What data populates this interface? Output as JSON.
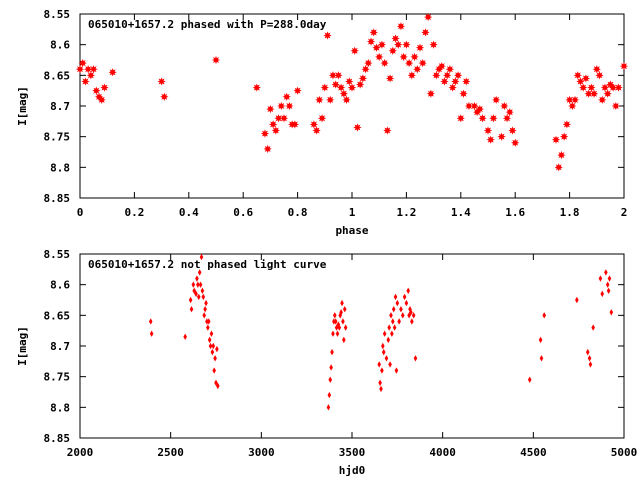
{
  "chart_data": [
    {
      "type": "scatter",
      "title": "065010+1657.2 phased with P=288.0day",
      "xlabel": "phase",
      "ylabel": "I[mag]",
      "xlim": [
        0,
        2
      ],
      "ylim": [
        8.55,
        8.85
      ],
      "y_inverted": true,
      "xticks": [
        "0",
        "0.2",
        "0.4",
        "0.6",
        "0.8",
        "1",
        "1.2",
        "1.4",
        "1.6",
        "1.8",
        "2"
      ],
      "yticks": [
        "8.55",
        "8.6",
        "8.65",
        "8.7",
        "8.75",
        "8.8",
        "8.85"
      ],
      "marker": "star",
      "color": "#ff0000",
      "points": [
        [
          0.0,
          8.64
        ],
        [
          0.01,
          8.63
        ],
        [
          0.02,
          8.66
        ],
        [
          0.03,
          8.64
        ],
        [
          0.04,
          8.65
        ],
        [
          0.05,
          8.64
        ],
        [
          0.06,
          8.675
        ],
        [
          0.07,
          8.685
        ],
        [
          0.08,
          8.69
        ],
        [
          0.09,
          8.67
        ],
        [
          0.12,
          8.645
        ],
        [
          0.3,
          8.66
        ],
        [
          0.31,
          8.685
        ],
        [
          0.5,
          8.625
        ],
        [
          0.65,
          8.67
        ],
        [
          0.68,
          8.745
        ],
        [
          0.69,
          8.77
        ],
        [
          0.7,
          8.705
        ],
        [
          0.71,
          8.73
        ],
        [
          0.72,
          8.74
        ],
        [
          0.73,
          8.72
        ],
        [
          0.74,
          8.7
        ],
        [
          0.75,
          8.72
        ],
        [
          0.76,
          8.685
        ],
        [
          0.77,
          8.7
        ],
        [
          0.78,
          8.73
        ],
        [
          0.79,
          8.73
        ],
        [
          0.8,
          8.675
        ],
        [
          0.86,
          8.73
        ],
        [
          0.87,
          8.74
        ],
        [
          0.88,
          8.69
        ],
        [
          0.89,
          8.72
        ],
        [
          0.9,
          8.67
        ],
        [
          0.91,
          8.585
        ],
        [
          0.92,
          8.69
        ],
        [
          0.93,
          8.65
        ],
        [
          0.94,
          8.665
        ],
        [
          0.95,
          8.65
        ],
        [
          0.96,
          8.67
        ],
        [
          0.97,
          8.68
        ],
        [
          0.98,
          8.69
        ],
        [
          0.99,
          8.66
        ],
        [
          1.0,
          8.67
        ],
        [
          1.01,
          8.61
        ],
        [
          1.02,
          8.735
        ],
        [
          1.03,
          8.665
        ],
        [
          1.04,
          8.655
        ],
        [
          1.05,
          8.64
        ],
        [
          1.06,
          8.63
        ],
        [
          1.07,
          8.595
        ],
        [
          1.08,
          8.58
        ],
        [
          1.09,
          8.605
        ],
        [
          1.1,
          8.62
        ],
        [
          1.11,
          8.6
        ],
        [
          1.12,
          8.63
        ],
        [
          1.13,
          8.74
        ],
        [
          1.14,
          8.655
        ],
        [
          1.15,
          8.61
        ],
        [
          1.16,
          8.59
        ],
        [
          1.17,
          8.6
        ],
        [
          1.18,
          8.57
        ],
        [
          1.19,
          8.62
        ],
        [
          1.2,
          8.6
        ],
        [
          1.21,
          8.63
        ],
        [
          1.22,
          8.65
        ],
        [
          1.23,
          8.62
        ],
        [
          1.24,
          8.64
        ],
        [
          1.25,
          8.605
        ],
        [
          1.26,
          8.63
        ],
        [
          1.27,
          8.58
        ],
        [
          1.28,
          8.555
        ],
        [
          1.29,
          8.68
        ],
        [
          1.3,
          8.6
        ],
        [
          1.31,
          8.65
        ],
        [
          1.32,
          8.64
        ],
        [
          1.33,
          8.635
        ],
        [
          1.34,
          8.66
        ],
        [
          1.35,
          8.65
        ],
        [
          1.36,
          8.64
        ],
        [
          1.37,
          8.67
        ],
        [
          1.38,
          8.66
        ],
        [
          1.39,
          8.65
        ],
        [
          1.4,
          8.72
        ],
        [
          1.41,
          8.68
        ],
        [
          1.42,
          8.66
        ],
        [
          1.43,
          8.7
        ],
        [
          1.45,
          8.7
        ],
        [
          1.46,
          8.71
        ],
        [
          1.47,
          8.705
        ],
        [
          1.48,
          8.72
        ],
        [
          1.5,
          8.74
        ],
        [
          1.51,
          8.755
        ],
        [
          1.52,
          8.72
        ],
        [
          1.53,
          8.69
        ],
        [
          1.55,
          8.75
        ],
        [
          1.56,
          8.7
        ],
        [
          1.57,
          8.72
        ],
        [
          1.58,
          8.71
        ],
        [
          1.59,
          8.74
        ],
        [
          1.6,
          8.76
        ],
        [
          1.75,
          8.755
        ],
        [
          1.76,
          8.8
        ],
        [
          1.77,
          8.78
        ],
        [
          1.78,
          8.75
        ],
        [
          1.79,
          8.73
        ],
        [
          1.8,
          8.69
        ],
        [
          1.81,
          8.7
        ],
        [
          1.82,
          8.69
        ],
        [
          1.83,
          8.65
        ],
        [
          1.84,
          8.66
        ],
        [
          1.85,
          8.67
        ],
        [
          1.86,
          8.655
        ],
        [
          1.87,
          8.68
        ],
        [
          1.88,
          8.67
        ],
        [
          1.89,
          8.68
        ],
        [
          1.9,
          8.64
        ],
        [
          1.91,
          8.65
        ],
        [
          1.92,
          8.69
        ],
        [
          1.93,
          8.67
        ],
        [
          1.94,
          8.68
        ],
        [
          1.95,
          8.665
        ],
        [
          1.96,
          8.67
        ],
        [
          1.97,
          8.7
        ],
        [
          1.98,
          8.67
        ],
        [
          2.0,
          8.635
        ]
      ]
    },
    {
      "type": "scatter",
      "title": "065010+1657.2 not phased light curve",
      "xlabel": "hjd0",
      "ylabel": "I[mag]",
      "xlim": [
        2000,
        5000
      ],
      "ylim": [
        8.55,
        8.85
      ],
      "y_inverted": true,
      "xticks": [
        "2000",
        "2500",
        "3000",
        "3500",
        "4000",
        "4500",
        "5000"
      ],
      "yticks": [
        "8.55",
        "8.6",
        "8.65",
        "8.7",
        "8.75",
        "8.8",
        "8.85"
      ],
      "marker": "diamond",
      "color": "#ff0000",
      "points": [
        [
          2390,
          8.66
        ],
        [
          2395,
          8.68
        ],
        [
          2580,
          8.685
        ],
        [
          2610,
          8.625
        ],
        [
          2615,
          8.64
        ],
        [
          2625,
          8.6
        ],
        [
          2630,
          8.61
        ],
        [
          2640,
          8.615
        ],
        [
          2645,
          8.59
        ],
        [
          2650,
          8.6
        ],
        [
          2655,
          8.62
        ],
        [
          2660,
          8.58
        ],
        [
          2665,
          8.6
        ],
        [
          2670,
          8.555
        ],
        [
          2675,
          8.61
        ],
        [
          2680,
          8.62
        ],
        [
          2685,
          8.65
        ],
        [
          2690,
          8.64
        ],
        [
          2695,
          8.63
        ],
        [
          2700,
          8.66
        ],
        [
          2705,
          8.67
        ],
        [
          2710,
          8.66
        ],
        [
          2715,
          8.69
        ],
        [
          2720,
          8.7
        ],
        [
          2725,
          8.68
        ],
        [
          2730,
          8.71
        ],
        [
          2735,
          8.7
        ],
        [
          2740,
          8.74
        ],
        [
          2745,
          8.72
        ],
        [
          2750,
          8.76
        ],
        [
          2755,
          8.705
        ],
        [
          2760,
          8.765
        ],
        [
          3370,
          8.8
        ],
        [
          3375,
          8.78
        ],
        [
          3380,
          8.755
        ],
        [
          3385,
          8.735
        ],
        [
          3390,
          8.71
        ],
        [
          3395,
          8.68
        ],
        [
          3400,
          8.66
        ],
        [
          3405,
          8.65
        ],
        [
          3410,
          8.66
        ],
        [
          3415,
          8.67
        ],
        [
          3420,
          8.68
        ],
        [
          3425,
          8.665
        ],
        [
          3430,
          8.67
        ],
        [
          3435,
          8.65
        ],
        [
          3440,
          8.645
        ],
        [
          3445,
          8.63
        ],
        [
          3450,
          8.66
        ],
        [
          3455,
          8.69
        ],
        [
          3460,
          8.64
        ],
        [
          3465,
          8.67
        ],
        [
          3650,
          8.73
        ],
        [
          3655,
          8.76
        ],
        [
          3660,
          8.77
        ],
        [
          3665,
          8.74
        ],
        [
          3670,
          8.7
        ],
        [
          3675,
          8.71
        ],
        [
          3680,
          8.68
        ],
        [
          3690,
          8.72
        ],
        [
          3700,
          8.69
        ],
        [
          3705,
          8.67
        ],
        [
          3710,
          8.73
        ],
        [
          3715,
          8.65
        ],
        [
          3720,
          8.68
        ],
        [
          3725,
          8.66
        ],
        [
          3730,
          8.64
        ],
        [
          3735,
          8.67
        ],
        [
          3740,
          8.62
        ],
        [
          3745,
          8.74
        ],
        [
          3750,
          8.63
        ],
        [
          3760,
          8.66
        ],
        [
          3770,
          8.64
        ],
        [
          3780,
          8.65
        ],
        [
          3790,
          8.62
        ],
        [
          3800,
          8.63
        ],
        [
          3810,
          8.61
        ],
        [
          3815,
          8.65
        ],
        [
          3820,
          8.64
        ],
        [
          3825,
          8.645
        ],
        [
          3830,
          8.66
        ],
        [
          3840,
          8.65
        ],
        [
          3850,
          8.72
        ],
        [
          4480,
          8.755
        ],
        [
          4540,
          8.69
        ],
        [
          4545,
          8.72
        ],
        [
          4560,
          8.65
        ],
        [
          4740,
          8.625
        ],
        [
          4800,
          8.71
        ],
        [
          4810,
          8.72
        ],
        [
          4815,
          8.73
        ],
        [
          4830,
          8.67
        ],
        [
          4870,
          8.59
        ],
        [
          4880,
          8.615
        ],
        [
          4900,
          8.58
        ],
        [
          4910,
          8.6
        ],
        [
          4915,
          8.61
        ],
        [
          4920,
          8.59
        ],
        [
          4930,
          8.645
        ]
      ]
    }
  ]
}
